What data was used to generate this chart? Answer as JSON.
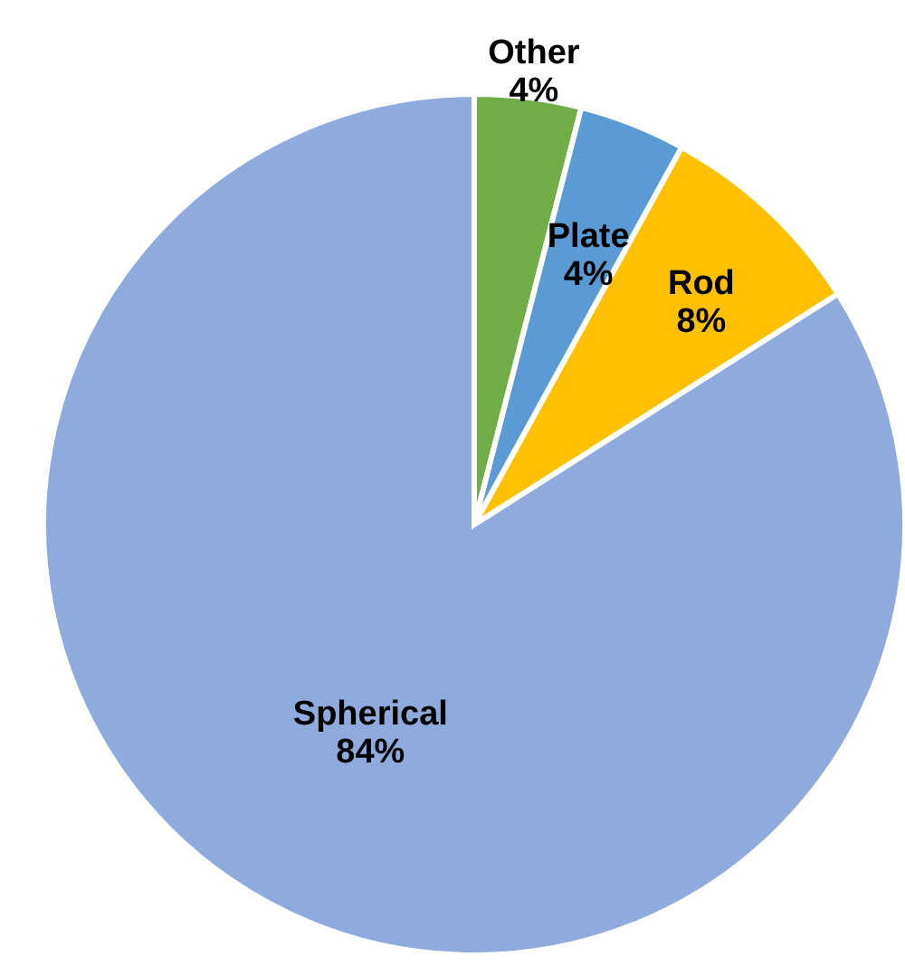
{
  "chart_data": {
    "type": "pie",
    "categories": [
      "Other",
      "Plate",
      "Rod",
      "Spherical"
    ],
    "values": [
      4,
      4,
      8,
      84
    ],
    "value_labels": [
      "4%",
      "4%",
      "8%",
      "84%"
    ],
    "colors": [
      "#70ad47",
      "#5b9bd5",
      "#ffc000",
      "#8faadc"
    ]
  }
}
